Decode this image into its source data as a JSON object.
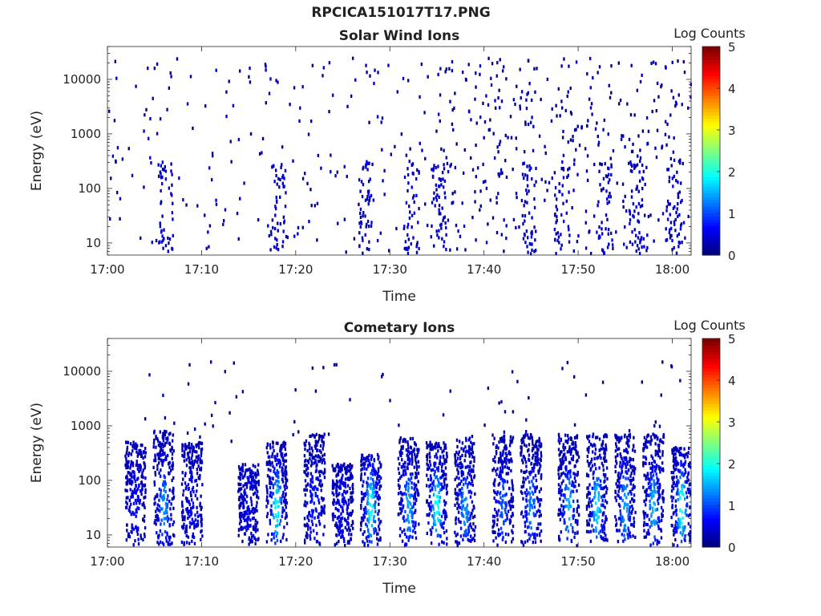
{
  "figure_title": "RPCICA151017T17.PNG",
  "chart_data": [
    {
      "type": "heatmap",
      "title": "Solar Wind Ions",
      "xlabel": "Time",
      "ylabel": "Energy (eV)",
      "y_scale": "log",
      "ylim": [
        6,
        40000
      ],
      "xlim": [
        "17:00",
        "18:02"
      ],
      "x_tick_labels": [
        "17:00",
        "17:10",
        "17:20",
        "17:30",
        "17:40",
        "17:50",
        "18:00"
      ],
      "y_tick_labels": [
        "10",
        "100",
        "1000",
        "10000"
      ],
      "colorbar": {
        "label": "Log Counts",
        "min": 0,
        "max": 5,
        "ticks": [
          "0",
          "1",
          "2",
          "3",
          "4",
          "5"
        ],
        "colormap": "jet"
      },
      "description_of_values": "Sparse scattered counts (mostly log counts ~0-0.5) across 10 eV to ~30 keV, denser after 17:35; vertical streaks at low energies (<100 eV) near 17:06, 17:18, 17:27, 17:32, 17:35, 17:45, 17:48, 17:53, 17:56, 18:00."
    },
    {
      "type": "heatmap",
      "title": "Cometary Ions",
      "xlabel": "Time",
      "ylabel": "Energy (eV)",
      "y_scale": "log",
      "ylim": [
        6,
        40000
      ],
      "xlim": [
        "17:00",
        "18:02"
      ],
      "x_tick_labels": [
        "17:00",
        "17:10",
        "17:20",
        "17:30",
        "17:40",
        "17:50",
        "18:00"
      ],
      "y_tick_labels": [
        "10",
        "100",
        "1000",
        "10000"
      ],
      "colorbar": {
        "label": "Log Counts",
        "min": 0,
        "max": 5,
        "ticks": [
          "0",
          "1",
          "2",
          "3",
          "4",
          "5"
        ],
        "colormap": "jet"
      },
      "bursts": [
        {
          "time": "17:03",
          "emax": 500,
          "peak": 0.6
        },
        {
          "time": "17:06",
          "emax": 800,
          "peak": 1.3
        },
        {
          "time": "17:09",
          "emax": 500,
          "peak": 0.6
        },
        {
          "time": "17:15",
          "emax": 200,
          "peak": 0.5
        },
        {
          "time": "17:18",
          "emax": 500,
          "peak": 1.8
        },
        {
          "time": "17:22",
          "emax": 700,
          "peak": 0.7
        },
        {
          "time": "17:25",
          "emax": 200,
          "peak": 0.5
        },
        {
          "time": "17:28",
          "emax": 300,
          "peak": 1.9
        },
        {
          "time": "17:32",
          "emax": 600,
          "peak": 1.4
        },
        {
          "time": "17:35",
          "emax": 500,
          "peak": 1.9
        },
        {
          "time": "17:38",
          "emax": 600,
          "peak": 1.3
        },
        {
          "time": "17:42",
          "emax": 700,
          "peak": 1.0
        },
        {
          "time": "17:45",
          "emax": 700,
          "peak": 1.2
        },
        {
          "time": "17:49",
          "emax": 700,
          "peak": 1.5
        },
        {
          "time": "17:52",
          "emax": 700,
          "peak": 1.7
        },
        {
          "time": "17:55",
          "emax": 700,
          "peak": 1.4
        },
        {
          "time": "17:58",
          "emax": 700,
          "peak": 1.5
        },
        {
          "time": "18:01",
          "emax": 400,
          "peak": 2.0
        }
      ]
    }
  ]
}
